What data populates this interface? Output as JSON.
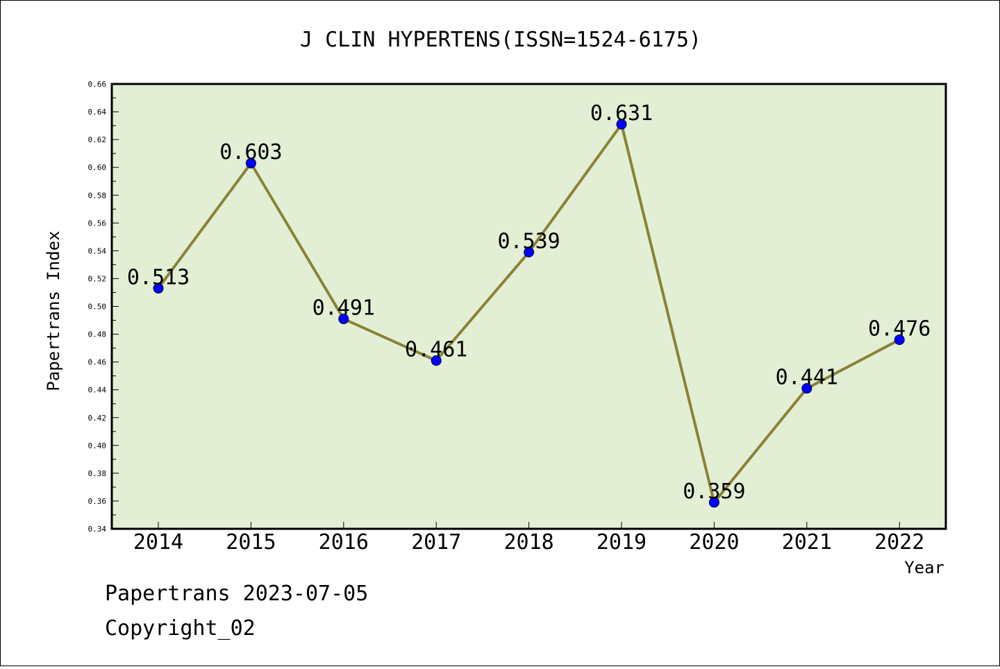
{
  "chart_data": {
    "type": "line",
    "title": "J CLIN HYPERTENS(ISSN=1524-6175)",
    "xlabel": "Year",
    "ylabel": "Papertrans Index",
    "categories": [
      "2014",
      "2015",
      "2016",
      "2017",
      "2018",
      "2019",
      "2020",
      "2021",
      "2022"
    ],
    "values": [
      0.513,
      0.603,
      0.491,
      0.461,
      0.539,
      0.631,
      0.359,
      0.441,
      0.476
    ],
    "data_labels": [
      "0.513",
      "0.603",
      "0.491",
      "0.461",
      "0.539",
      "0.631",
      "0.359",
      "0.441",
      "0.476"
    ],
    "ylim": [
      0.34,
      0.66
    ],
    "yticks": [
      "0.34",
      "0.36",
      "0.38",
      "0.40",
      "0.42",
      "0.44",
      "0.46",
      "0.48",
      "0.50",
      "0.52",
      "0.54",
      "0.56",
      "0.58",
      "0.60",
      "0.62",
      "0.64",
      "0.66"
    ],
    "grid": false,
    "colors": {
      "plot_background": "#e2efd5",
      "line": "#8b8237",
      "marker": "#0000ff"
    }
  },
  "footer": {
    "line1": "Papertrans 2023-07-05",
    "line2": "Copyright_02"
  }
}
